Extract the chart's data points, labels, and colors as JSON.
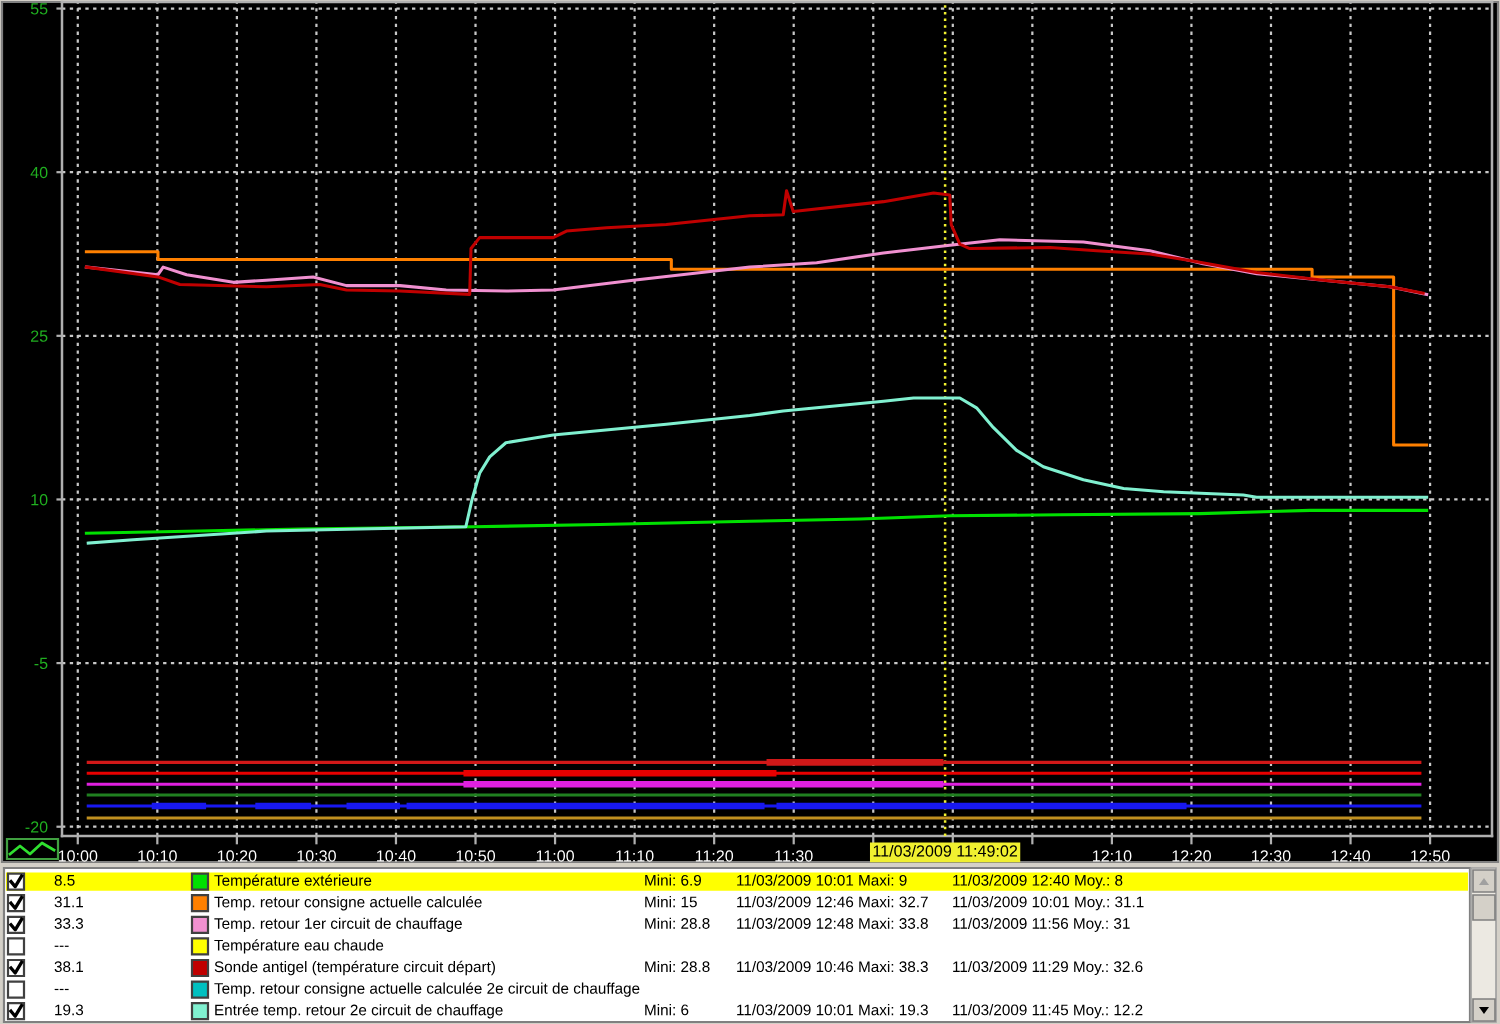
{
  "chart_data": {
    "type": "line",
    "xlim": [
      "2009-03-11T09:58:01",
      "2009-03-11T12:57:47"
    ],
    "ylim": [
      -20.85,
      55.6
    ],
    "xticks": [
      {
        "value": "2009-03-11T10:00",
        "label": "10:00"
      },
      {
        "value": "2009-03-11T10:10",
        "label": "10:10"
      },
      {
        "value": "2009-03-11T10:20",
        "label": "10:20"
      },
      {
        "value": "2009-03-11T10:30",
        "label": "10:30"
      },
      {
        "value": "2009-03-11T10:40",
        "label": "10:40"
      },
      {
        "value": "2009-03-11T10:50",
        "label": "10:50"
      },
      {
        "value": "2009-03-11T11:00",
        "label": "11:00"
      },
      {
        "value": "2009-03-11T11:10",
        "label": "11:10"
      },
      {
        "value": "2009-03-11T11:20",
        "label": "11:20"
      },
      {
        "value": "2009-03-11T11:30",
        "label": "11:30"
      },
      {
        "value": "2009-03-11T11:40",
        "label": null
      },
      {
        "value": "2009-03-11T11:50",
        "label": null
      },
      {
        "value": "2009-03-11T12:00",
        "label": null
      },
      {
        "value": "2009-03-11T12:10",
        "label": "12:10"
      },
      {
        "value": "2009-03-11T12:20",
        "label": "12:20"
      },
      {
        "value": "2009-03-11T12:30",
        "label": "12:30"
      },
      {
        "value": "2009-03-11T12:40",
        "label": "12:40"
      },
      {
        "value": "2009-03-11T12:50",
        "label": "12:50"
      }
    ],
    "yticks": [
      -20,
      -5,
      10,
      25,
      40,
      55
    ],
    "grid": true,
    "legend": "bottom",
    "ref_lines": [
      {
        "axis": "x",
        "value": "2009-03-11T11:49:02",
        "label": "11/03/2009 11:49:02",
        "color": "#f0f030",
        "line_style": "dotted"
      }
    ],
    "series": [
      {
        "name": "Température extérieure",
        "color": "#00e000",
        "x": [
          "2009-03-11T10:01:05",
          "2009-03-11T10:15:22",
          "2009-03-11T10:27:54",
          "2009-03-11T10:49:48",
          "2009-03-11T11:05:38",
          "2009-03-11T11:24:29",
          "2009-03-11T11:38:20",
          "2009-03-11T11:49:37",
          "2009-03-11T12:03:29",
          "2009-03-11T12:21:04",
          "2009-03-11T12:34:55",
          "2009-03-11T12:49:34"
        ],
        "values": [
          6.9,
          7.1,
          7.3,
          7.5,
          7.7,
          8.0,
          8.2,
          8.5,
          8.6,
          8.7,
          9.0,
          9.0
        ]
      },
      {
        "name": "Temp. retour consigne actuelle calculée",
        "color": "#ff8000",
        "type": "step",
        "x": [
          "2009-03-11T10:01:05",
          "2009-03-11T10:10:05",
          "2009-03-11T11:14:37",
          "2009-03-11T12:35:10",
          "2009-03-11T12:45:25",
          "2009-03-11T12:49:34"
        ],
        "values": [
          32.7,
          32.0,
          31.1,
          30.4,
          15,
          15
        ]
      },
      {
        "name": "Temp. retour 1er circuit de chauffage",
        "color": "#f090d0",
        "x": [
          "2009-03-11T10:01:05",
          "2009-03-11T10:10:05",
          "2009-03-11T10:10:44",
          "2009-03-11T10:13:41",
          "2009-03-11T10:19:34",
          "2009-03-11T10:23:42",
          "2009-03-11T10:29:35",
          "2009-03-11T10:33:47",
          "2009-03-11T10:40:30",
          "2009-03-11T10:46:19",
          "2009-03-11T10:53:53",
          "2009-03-11T10:59:46",
          "2009-03-11T11:09:50",
          "2009-03-11T11:24:29",
          "2009-03-11T11:32:53",
          "2009-03-11T11:41:17",
          "2009-03-11T11:49:37",
          "2009-03-11T11:55:55",
          "2009-03-11T12:06:25",
          "2009-03-11T12:14:46",
          "2009-03-11T12:21:29",
          "2009-03-11T12:28:12",
          "2009-03-11T12:36:36",
          "2009-03-11T12:44:56",
          "2009-03-11T12:49:34"
        ],
        "values": [
          31.3,
          30.6,
          31.3,
          30.6,
          29.9,
          30.1,
          30.4,
          29.6,
          29.6,
          29.2,
          29.1,
          29.2,
          30.1,
          31.3,
          31.7,
          32.6,
          33.3,
          33.8,
          33.6,
          32.8,
          31.6,
          30.7,
          30.1,
          29.5,
          28.8
        ]
      },
      {
        "name": "Température eau chaude",
        "color": "#ffff00"
      },
      {
        "name": "Sonde antigel (température circuit départ)",
        "color": "#c00000",
        "x": [
          "2009-03-11T10:01:05",
          "2009-03-11T10:10:05",
          "2009-03-11T10:12:50",
          "2009-03-11T10:23:42",
          "2009-03-11T10:30:25",
          "2009-03-11T10:33:47",
          "2009-03-11T10:40:30",
          "2009-03-11T10:49:16",
          "2009-03-11T10:49:26",
          "2009-03-11T10:50:31",
          "2009-03-11T10:59:46",
          "2009-03-11T11:01:26",
          "2009-03-11T11:06:29",
          "2009-03-11T11:13:59",
          "2009-03-11T11:24:29",
          "2009-03-11T11:28:41",
          "2009-03-11T11:29:06",
          "2009-03-11T11:29:56",
          "2009-03-11T11:41:17",
          "2009-03-11T11:47:35",
          "2009-03-11T11:49:37",
          "2009-03-11T11:49:48",
          "2009-03-11T11:50:53",
          "2009-03-11T11:52:08",
          "2009-03-11T12:02:13",
          "2009-03-11T12:08:06",
          "2009-03-11T12:14:46",
          "2009-03-11T12:19:48",
          "2009-03-11T12:28:12",
          "2009-03-11T12:36:36",
          "2009-03-11T12:44:56",
          "2009-03-11T12:49:08"
        ],
        "values": [
          31.3,
          30.4,
          29.7,
          29.5,
          29.7,
          29.2,
          29.1,
          28.8,
          33.0,
          34.0,
          34.0,
          34.6,
          34.9,
          35.2,
          36.0,
          36.1,
          38.3,
          36.4,
          37.3,
          38.1,
          37.9,
          35.2,
          33.4,
          33.0,
          33.1,
          32.8,
          32.5,
          31.9,
          30.8,
          30.1,
          29.5,
          28.9
        ]
      },
      {
        "name": "Temp. retour consigne actuelle calculée 2e circuit de chauffage",
        "color": "#00c0c0"
      },
      {
        "name": "Entrée temp. retour 2e circuit de chauffage",
        "color": "#80f0d0",
        "x": [
          "2009-03-11T10:01:19",
          "2009-03-11T10:06:58",
          "2009-03-11T10:23:42",
          "2009-03-11T10:48:47",
          "2009-03-11T10:49:34",
          "2009-03-11T10:50:31",
          "2009-03-11T10:51:47",
          "2009-03-11T10:53:49",
          "2009-03-11T10:57:14",
          "2009-03-11T10:59:46",
          "2009-03-11T11:13:59",
          "2009-03-11T11:24:29",
          "2009-03-11T11:28:41",
          "2009-03-11T11:41:17",
          "2009-03-11T11:45:04",
          "2009-03-11T11:50:53",
          "2009-03-11T11:52:59",
          "2009-03-11T11:55:05",
          "2009-03-11T11:58:01",
          "2009-03-11T12:01:23",
          "2009-03-11T12:06:25",
          "2009-03-11T12:11:28",
          "2009-03-11T12:16:30",
          "2009-03-11T12:26:31",
          "2009-03-11T12:28:12",
          "2009-03-11T12:49:34"
        ],
        "values": [
          6.0,
          6.3,
          7.1,
          7.5,
          10.0,
          12.4,
          13.9,
          15.2,
          15.6,
          15.9,
          16.9,
          17.7,
          18.1,
          19.0,
          19.3,
          19.3,
          18.4,
          16.6,
          14.5,
          13.0,
          11.8,
          11.0,
          10.7,
          10.4,
          10.2,
          10.2
        ]
      },
      {
        "color": "#d01818",
        "x": [
          "2009-03-11T10:01:19",
          "2009-03-11T11:26:35",
          "2009-03-11T11:48:49",
          "2009-03-11T12:48:43"
        ],
        "values": [
          -14.1,
          -14.1,
          -14.1,
          -14.1
        ],
        "lower": [
          null,
          -14.4,
          -14.4,
          null
        ],
        "upper": [
          null,
          -13.8,
          -13.8,
          null
        ]
      },
      {
        "color": "#e80000",
        "x": [
          "2009-03-11T10:01:19",
          "2009-03-11T10:48:29",
          "2009-03-11T11:27:50",
          "2009-03-11T12:48:43"
        ],
        "values": [
          -15.1,
          -15.1,
          -15.1,
          -15.1
        ],
        "lower": [
          null,
          -15.4,
          -15.4,
          null
        ],
        "upper": [
          null,
          -14.8,
          -14.8,
          null
        ]
      },
      {
        "color": "#e020e0",
        "x": [
          "2009-03-11T10:01:19",
          "2009-03-11T10:48:29",
          "2009-03-11T11:48:49",
          "2009-03-11T12:48:43"
        ],
        "values": [
          -16.1,
          -16.1,
          -16.1,
          -16.1
        ],
        "lower": [
          null,
          -16.4,
          -16.4,
          null
        ],
        "upper": [
          null,
          -15.8,
          -15.8,
          null
        ]
      },
      {
        "color": "#208020",
        "x": [
          "2009-03-11T10:01:19",
          "2009-03-11T12:48:43"
        ],
        "values": [
          -17.1,
          -17.1
        ]
      },
      {
        "color": "#1818f0",
        "x": [
          "2009-03-11T10:01:19",
          "2009-03-11T10:09:18",
          "2009-03-11T10:16:08",
          "2009-03-11T10:19:12",
          "2009-03-11T10:22:19",
          "2009-03-11T10:29:20",
          "2009-03-11T10:31:34",
          "2009-03-11T10:33:47",
          "2009-03-11T10:40:30",
          "2009-03-11T10:40:55",
          "2009-03-11T10:41:20",
          "2009-03-11T11:26:20",
          "2009-03-11T11:27:04",
          "2009-03-11T11:27:50",
          "2009-03-11T12:19:23",
          "2009-03-11T12:48:43"
        ],
        "values": [
          -18.1,
          -18.1,
          -18.1,
          -18.1,
          -18.1,
          -18.1,
          -18.1,
          -18.1,
          -18.1,
          -18.1,
          -18.1,
          -18.1,
          -18.1,
          -18.1,
          -18.1,
          -18.1
        ],
        "lower": [
          null,
          -18.4,
          -18.4,
          null,
          -18.4,
          -18.4,
          null,
          -18.4,
          -18.4,
          null,
          -18.4,
          -18.4,
          null,
          -18.4,
          -18.4,
          null
        ],
        "upper": [
          null,
          -17.8,
          -17.8,
          null,
          -17.8,
          -17.8,
          null,
          -17.8,
          -17.8,
          null,
          -17.8,
          -17.8,
          null,
          -17.8,
          -17.8,
          null
        ]
      },
      {
        "color": "#c09020",
        "x": [
          "2009-03-11T10:01:19",
          "2009-03-11T12:48:43"
        ],
        "values": [
          -19.2,
          -19.2
        ]
      }
    ],
    "annotations": [
      "8.5",
      "Mini: 6.9",
      "11/03/2009 10:01 Maxi: 9",
      "11/03/2009 12:40 Moy.: 8",
      "31.1",
      "Mini: 15",
      "11/03/2009 12:46 Maxi: 32.7",
      "11/03/2009 10:01 Moy.: 31.1",
      "33.3",
      "Mini: 28.8",
      "11/03/2009 12:48 Maxi: 33.8",
      "11/03/2009 11:56 Moy.: 31",
      "---",
      "38.1",
      "Mini: 28.8",
      "11/03/2009 10:46 Maxi: 38.3",
      "11/03/2009 11:29 Moy.: 32.6",
      "---",
      "19.3",
      "Mini: 6",
      "11/03/2009 10:01 Maxi: 19.3",
      "11/03/2009 11:45 Moy.: 12.2"
    ]
  }
}
